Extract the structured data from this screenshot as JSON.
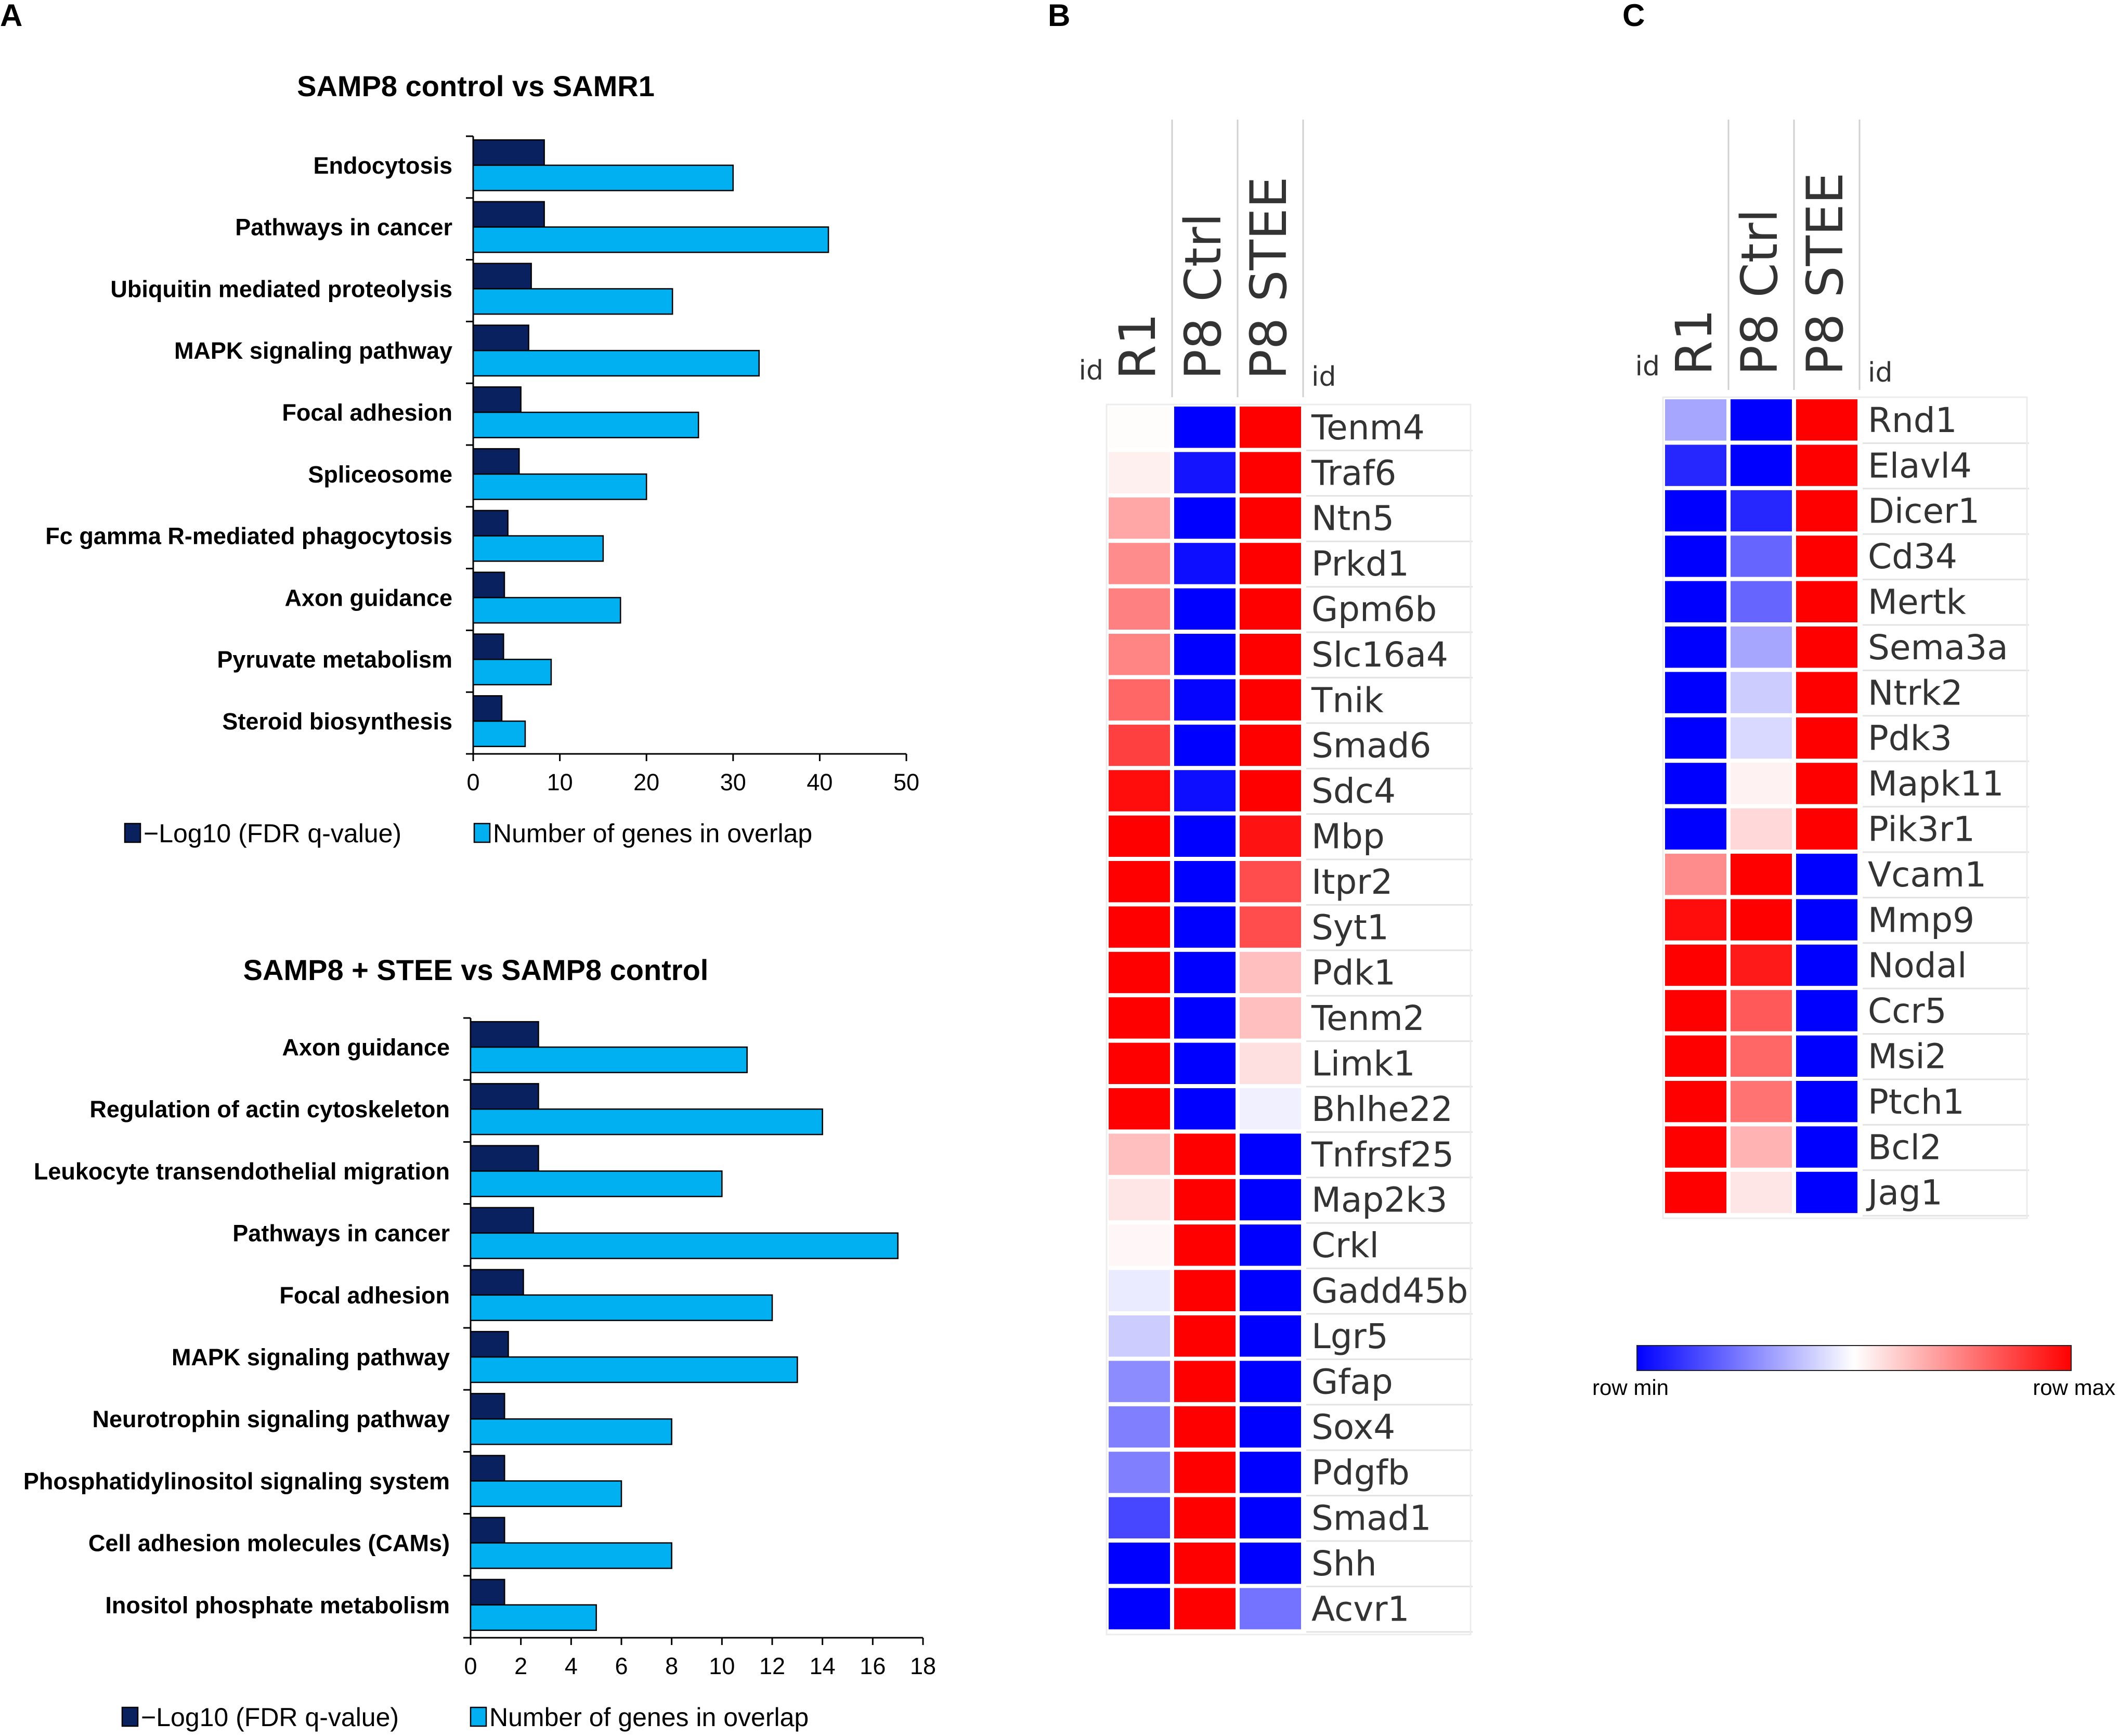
{
  "panel_labels": [
    "A",
    "B",
    "C"
  ],
  "colors": {
    "dark_bar": "#0a2160",
    "light_bar": "#00b0f0",
    "hm_max": "#ff0000",
    "hm_mid": "#ffffff",
    "hm_min": "#0000ff"
  },
  "chart_data": [
    {
      "type": "bar",
      "orientation": "horizontal",
      "title": "SAMP8 control vs SAMR1",
      "categories": [
        "Endocytosis",
        "Pathways in cancer",
        "Ubiquitin mediated proteolysis",
        "MAPK signaling pathway",
        "Focal adhesion",
        "Spliceosome",
        "Fc gamma R-mediated phagocytosis",
        "Axon guidance",
        "Pyruvate metabolism",
        "Steroid biosynthesis"
      ],
      "series": [
        {
          "name": "−Log10 (FDR q-value)",
          "color": "#0a2160",
          "values": [
            8.2,
            8.2,
            6.7,
            6.4,
            5.5,
            5.3,
            4.0,
            3.6,
            3.5,
            3.3
          ]
        },
        {
          "name": "Number of genes in overlap",
          "color": "#00b0f0",
          "values": [
            30,
            41,
            23,
            33,
            26,
            20,
            15,
            17,
            9,
            6
          ]
        }
      ],
      "xlim": [
        0,
        50
      ],
      "xticks": [
        0,
        10,
        20,
        30,
        40,
        50
      ],
      "legend": "bottom"
    },
    {
      "type": "bar",
      "orientation": "horizontal",
      "title": "SAMP8 + STEE vs SAMP8 control",
      "categories": [
        "Axon guidance",
        "Regulation of actin cytoskeleton",
        "Leukocyte transendothelial migration",
        "Pathways in cancer",
        "Focal adhesion",
        "MAPK signaling pathway",
        "Neurotrophin signaling pathway",
        "Phosphatidylinositol signaling system",
        "Cell adhesion molecules (CAMs)",
        "Inositol phosphate metabolism"
      ],
      "series": [
        {
          "name": "−Log10 (FDR q-value)",
          "color": "#0a2160",
          "values": [
            2.7,
            2.7,
            2.7,
            2.5,
            2.1,
            1.5,
            1.35,
            1.35,
            1.35,
            1.35
          ]
        },
        {
          "name": "Number of genes in overlap",
          "color": "#00b0f0",
          "values": [
            11,
            14,
            10,
            17,
            12,
            13,
            8,
            6,
            8,
            5
          ]
        }
      ],
      "xlim": [
        0,
        18
      ],
      "xticks": [
        0,
        2,
        4,
        6,
        8,
        10,
        12,
        14,
        16,
        18
      ],
      "legend": "bottom"
    },
    {
      "type": "heatmap",
      "panel": "B",
      "corner_label": "id",
      "row_label_header": "id",
      "columns": [
        "R1",
        "P8 Ctrl",
        "P8 STEE"
      ],
      "rows": [
        "Tenm4",
        "Traf6",
        "Ntn5",
        "Prkd1",
        "Gpm6b",
        "Slc16a4",
        "Tnik",
        "Smad6",
        "Sdc4",
        "Mbp",
        "Itpr2",
        "Syt1",
        "Pdk1",
        "Tenm2",
        "Limk1",
        "Bhlhe22",
        "Tnfrsf25",
        "Map2k3",
        "Crkl",
        "Gadd45b",
        "Lgr5",
        "Gfap",
        "Sox4",
        "Pdgfb",
        "Smad1",
        "Shh",
        "Acvr1"
      ],
      "values": [
        [
          0.01,
          -1.0,
          1.0
        ],
        [
          0.06,
          -0.92,
          1.0
        ],
        [
          0.35,
          -1.0,
          1.0
        ],
        [
          0.45,
          -0.95,
          1.0
        ],
        [
          0.5,
          -1.0,
          1.0
        ],
        [
          0.48,
          -1.0,
          1.0
        ],
        [
          0.6,
          -0.98,
          1.0
        ],
        [
          0.75,
          -1.0,
          1.0
        ],
        [
          0.95,
          -0.95,
          1.0
        ],
        [
          1.0,
          -1.0,
          0.93
        ],
        [
          1.0,
          -1.0,
          0.7
        ],
        [
          1.0,
          -1.0,
          0.7
        ],
        [
          1.0,
          -1.0,
          0.25
        ],
        [
          1.0,
          -1.0,
          0.25
        ],
        [
          1.0,
          -1.0,
          0.12
        ],
        [
          1.0,
          -1.0,
          -0.06
        ],
        [
          0.25,
          1.0,
          -1.0
        ],
        [
          0.1,
          1.0,
          -1.0
        ],
        [
          0.03,
          1.0,
          -1.0
        ],
        [
          -0.08,
          1.0,
          -1.0
        ],
        [
          -0.2,
          1.0,
          -1.0
        ],
        [
          -0.45,
          1.0,
          -1.0
        ],
        [
          -0.5,
          1.0,
          -1.0
        ],
        [
          -0.5,
          1.0,
          -1.0
        ],
        [
          -0.72,
          1.0,
          -1.0
        ],
        [
          -1.0,
          1.0,
          -1.0
        ],
        [
          -1.0,
          1.0,
          -0.55
        ]
      ],
      "color_scale": {
        "min_label": "row min",
        "max_label": "row max"
      }
    },
    {
      "type": "heatmap",
      "panel": "C",
      "corner_label": "id",
      "row_label_header": "id",
      "columns": [
        "R1",
        "P8 Ctrl",
        "P8 STEE"
      ],
      "rows": [
        "Rnd1",
        "Elavl4",
        "Dicer1",
        "Cd34",
        "Mertk",
        "Sema3a",
        "Ntrk2",
        "Pdk3",
        "Mapk11",
        "Pik3r1",
        "Vcam1",
        "Mmp9",
        "Nodal",
        "Ccr5",
        "Msi2",
        "Ptch1",
        "Bcl2",
        "Jag1"
      ],
      "values": [
        [
          -0.35,
          -1.0,
          1.0
        ],
        [
          -0.85,
          -1.0,
          1.0
        ],
        [
          -1.0,
          -0.85,
          1.0
        ],
        [
          -1.0,
          -0.6,
          1.0
        ],
        [
          -1.0,
          -0.6,
          1.0
        ],
        [
          -1.0,
          -0.35,
          1.0
        ],
        [
          -1.0,
          -0.2,
          1.0
        ],
        [
          -1.0,
          -0.15,
          1.0
        ],
        [
          -1.0,
          0.05,
          1.0
        ],
        [
          -1.0,
          0.15,
          1.0
        ],
        [
          0.45,
          1.0,
          -1.0
        ],
        [
          0.95,
          1.0,
          -1.0
        ],
        [
          1.0,
          0.9,
          -1.0
        ],
        [
          1.0,
          0.65,
          -1.0
        ],
        [
          1.0,
          0.6,
          -1.0
        ],
        [
          1.0,
          0.55,
          -1.0
        ],
        [
          1.0,
          0.3,
          -1.0
        ],
        [
          1.0,
          0.1,
          -1.0
        ]
      ],
      "color_scale": {
        "min_label": "row min",
        "max_label": "row max"
      }
    }
  ]
}
